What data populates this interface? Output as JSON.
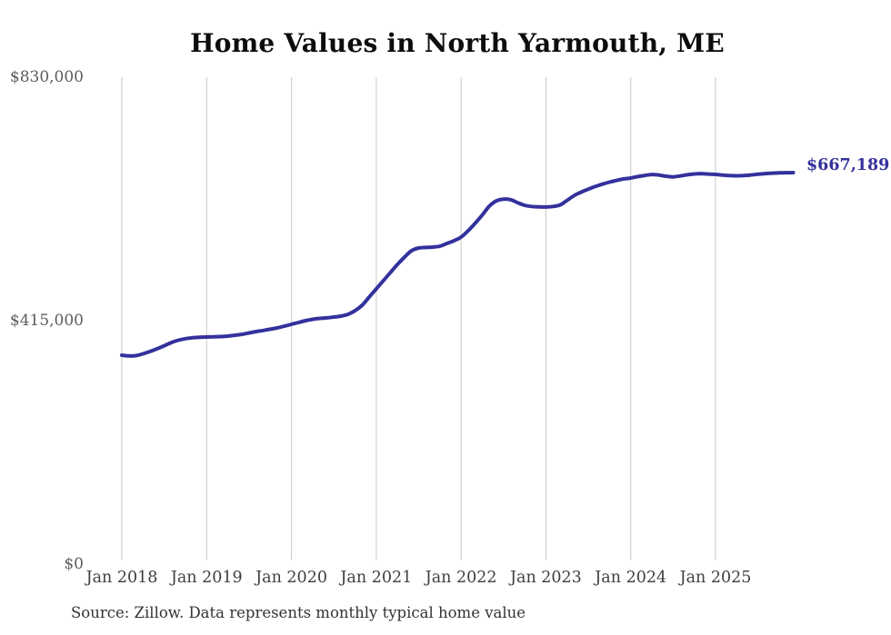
{
  "source_note": "Source: Zillow. Data represents monthly typical home value",
  "colors": {
    "line": "#33319c",
    "grid": "#c9c9c9",
    "y_axis_text": "#5c5c5c",
    "x_axis_text": "#404040",
    "title_text": "#0d0d0d",
    "end_label_text": "#33319c",
    "background": "#ffffff"
  },
  "chart_data": {
    "type": "line",
    "title": "Home Values in North Yarmouth, ME",
    "end_label": "$667,189",
    "end_value": 667189,
    "x_start": "Jan 2018",
    "x_interval": "monthly",
    "x_tick_labels": [
      "Jan 2018",
      "Jan 2019",
      "Jan 2020",
      "Jan 2021",
      "Jan 2022",
      "Jan 2023",
      "Jan 2024",
      "Jan 2025"
    ],
    "y_ticks": [
      {
        "value": 0,
        "label": "$0"
      },
      {
        "value": 415000,
        "label": "$415,000"
      },
      {
        "value": 830000,
        "label": "$830,000"
      }
    ],
    "ylim": [
      0,
      830000
    ],
    "grid": "vertical-yearly",
    "legend": "none",
    "series": [
      {
        "name": "Typical home value",
        "values": [
          355700,
          354400,
          355000,
          358100,
          362000,
          366700,
          371800,
          377200,
          381300,
          383900,
          385400,
          386200,
          386700,
          387100,
          387500,
          388300,
          389800,
          391400,
          393700,
          396000,
          397900,
          400100,
          402300,
          405300,
          408400,
          411500,
          414600,
          417000,
          418500,
          419400,
          420800,
          422400,
          425500,
          431700,
          441000,
          455100,
          468900,
          482800,
          496800,
          510700,
          523100,
          534000,
          538600,
          539500,
          540200,
          541700,
          546400,
          551100,
          557200,
          568000,
          581000,
          595000,
          610000,
          619000,
          622000,
          621000,
          616000,
          611500,
          609500,
          608800,
          608500,
          609500,
          612000,
          620000,
          628000,
          634000,
          639000,
          643500,
          647500,
          651000,
          654000,
          656500,
          658000,
          660500,
          662500,
          664000,
          663000,
          661000,
          660000,
          661500,
          663500,
          665000,
          665500,
          664800,
          664200,
          663000,
          662200,
          661800,
          662300,
          663200,
          664500,
          665500,
          666300,
          666800,
          667100,
          667189
        ]
      }
    ]
  }
}
